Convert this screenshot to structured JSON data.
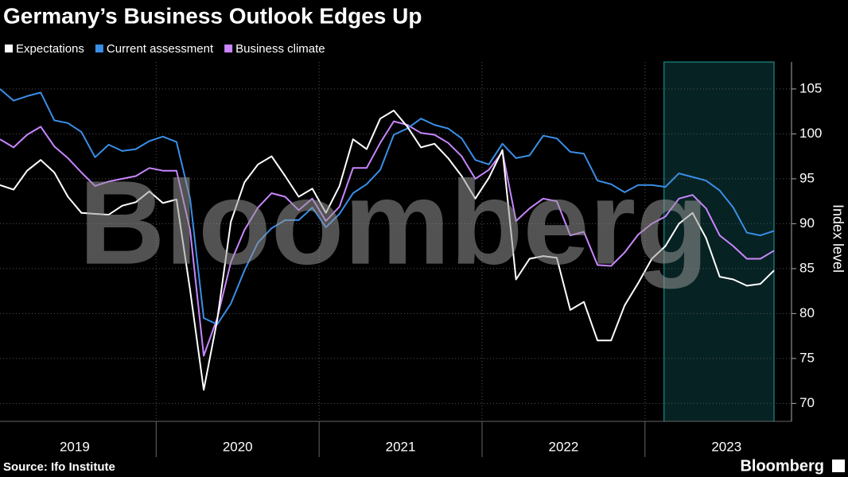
{
  "chart_data": {
    "type": "line",
    "title": "Germany’s Business Outlook Edges Up",
    "y_axis_label": "Index level",
    "source": "Source: Ifo Institute",
    "branding": "Bloomberg",
    "watermark": "Bloomberg",
    "categories": [
      null,
      null,
      null,
      null,
      null,
      "2019",
      null,
      null,
      null,
      null,
      null,
      null,
      null,
      null,
      null,
      null,
      null,
      "2020",
      null,
      null,
      null,
      null,
      null,
      null,
      null,
      null,
      null,
      null,
      null,
      "2021",
      null,
      null,
      null,
      null,
      null,
      null,
      null,
      null,
      null,
      null,
      null,
      "2022",
      null,
      null,
      null,
      null,
      null,
      null,
      null,
      null,
      null,
      null,
      null,
      "2023",
      null,
      null,
      null,
      null
    ],
    "series": [
      {
        "name": "Expectations",
        "color": "#ffffff",
        "values": [
          94.3,
          93.8,
          95.9,
          97.1,
          95.7,
          93.0,
          91.2,
          91.1,
          91.0,
          92.0,
          92.4,
          93.6,
          92.3,
          92.7,
          82.6,
          71.5,
          79.3,
          90.2,
          94.6,
          96.6,
          97.5,
          95.3,
          93.0,
          93.9,
          91.2,
          94.2,
          99.4,
          98.3,
          101.7,
          102.6,
          100.8,
          98.5,
          98.9,
          97.3,
          95.3,
          92.8,
          95.1,
          98.2,
          83.8,
          86.1,
          86.4,
          86.2,
          80.4,
          81.3,
          77.0,
          77.0,
          80.9,
          83.4,
          86.1,
          87.5,
          90.0,
          91.2,
          88.4,
          84.1,
          83.8,
          83.1,
          83.3,
          84.8
        ]
      },
      {
        "name": "Current assessment",
        "color": "#3a8ee6",
        "values": [
          105.0,
          103.7,
          104.2,
          104.6,
          101.5,
          101.2,
          100.2,
          97.4,
          98.8,
          98.1,
          98.3,
          99.2,
          99.7,
          99.1,
          92.8,
          79.5,
          78.8,
          81.1,
          84.8,
          87.9,
          89.5,
          90.4,
          90.4,
          91.8,
          89.6,
          91.1,
          93.4,
          94.4,
          96.0,
          99.9,
          100.6,
          101.7,
          101.0,
          100.6,
          99.5,
          97.1,
          96.6,
          98.9,
          97.3,
          97.6,
          99.8,
          99.5,
          98.0,
          97.8,
          94.8,
          94.4,
          93.5,
          94.3,
          94.3,
          94.1,
          95.6,
          95.2,
          94.8,
          93.7,
          91.8,
          89.0,
          88.7,
          89.2
        ]
      },
      {
        "name": "Business climate",
        "color": "#c986ff",
        "values": [
          99.4,
          98.5,
          99.9,
          100.8,
          98.6,
          97.3,
          95.7,
          94.2,
          94.7,
          95.0,
          95.3,
          96.2,
          95.9,
          95.9,
          89.3,
          75.3,
          79.5,
          85.7,
          89.3,
          91.8,
          93.4,
          93.0,
          91.5,
          92.8,
          90.3,
          91.9,
          96.2,
          96.2,
          99.0,
          101.4,
          101.0,
          100.1,
          99.9,
          99.0,
          97.5,
          95.0,
          96.0,
          98.0,
          90.3,
          91.7,
          92.8,
          92.5,
          88.7,
          89.1,
          85.4,
          85.3,
          86.8,
          88.8,
          90.0,
          90.8,
          92.8,
          93.2,
          91.7,
          88.7,
          87.5,
          86.1,
          86.1,
          87.0
        ]
      }
    ],
    "ylim": [
      68,
      108
    ],
    "yticks": [
      70,
      75,
      80,
      85,
      90,
      95,
      100,
      105
    ],
    "grid": true
  }
}
